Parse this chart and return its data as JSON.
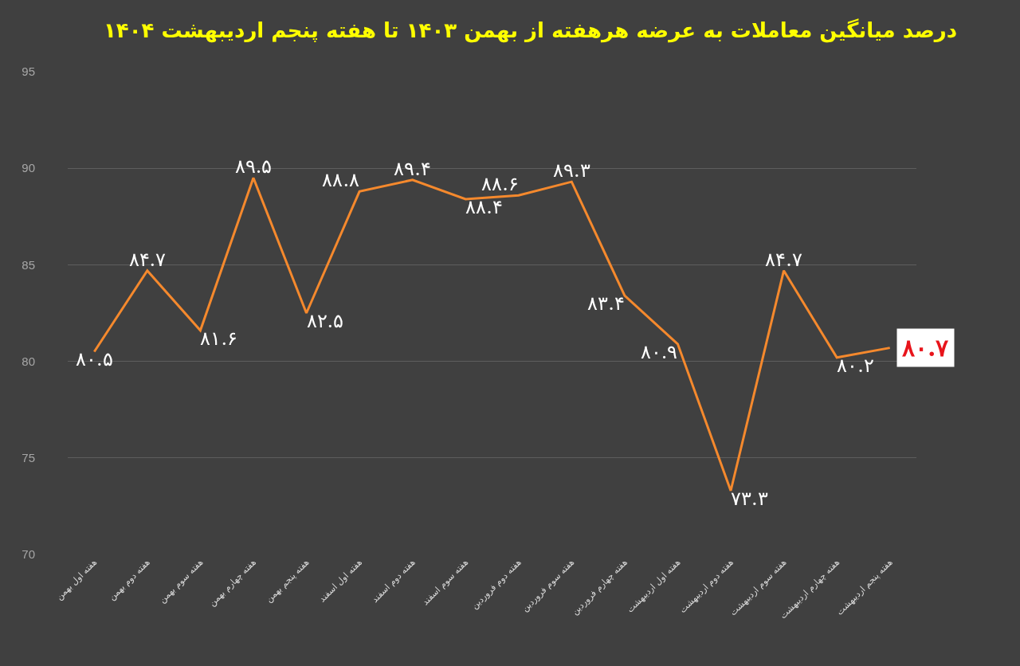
{
  "chart_data": {
    "type": "line",
    "title": "درصد میانگین معاملات به عرضه هرهفته از بهمن ۱۴۰۳ تا هفته پنجم اردیبهشت ۱۴۰۴",
    "categories": [
      "هفته اول بهمن",
      "هفته دوم بهمن",
      "هفته سوم بهمن",
      "هفته چهارم بهمن",
      "هفته پنجم بهمن",
      "هفته اول اسفند",
      "هفته دوم اسفند",
      "هفته سوم اسفند",
      "هفته دوم فروردین",
      "هفته سوم فروردین",
      "هفته چهارم فروردین",
      "هفته اول اردیبهشت",
      "هفته دوم اردیبهشت",
      "هفته سوم اردیبهشت",
      "هفته چهارم اردیبهشت",
      "هفته پنجم اردیبهشت"
    ],
    "series": [
      {
        "color": "#f5892d",
        "values": [
          80.5,
          84.7,
          81.6,
          89.5,
          82.5,
          88.8,
          89.4,
          88.4,
          88.6,
          89.3,
          83.4,
          80.9,
          73.3,
          84.7,
          80.2,
          80.7
        ],
        "value_labels": [
          "۸۰.۵",
          "۸۴.۷",
          "۸۱.۶",
          "۸۹.۵",
          "۸۲.۵",
          "۸۸.۸",
          "۸۹.۴",
          "۸۸.۴",
          "۸۸.۶",
          "۸۹.۳",
          "۸۳.۴",
          "۸۰.۹",
          "۷۳.۳",
          "۸۴.۷",
          "۸۰.۲",
          "۸۰.۷"
        ]
      }
    ],
    "ylim": [
      70,
      95
    ],
    "yticks": [
      70,
      75,
      80,
      85,
      90,
      95
    ],
    "grid": "y",
    "legend": false,
    "marker": "none",
    "line_style": "solid"
  }
}
